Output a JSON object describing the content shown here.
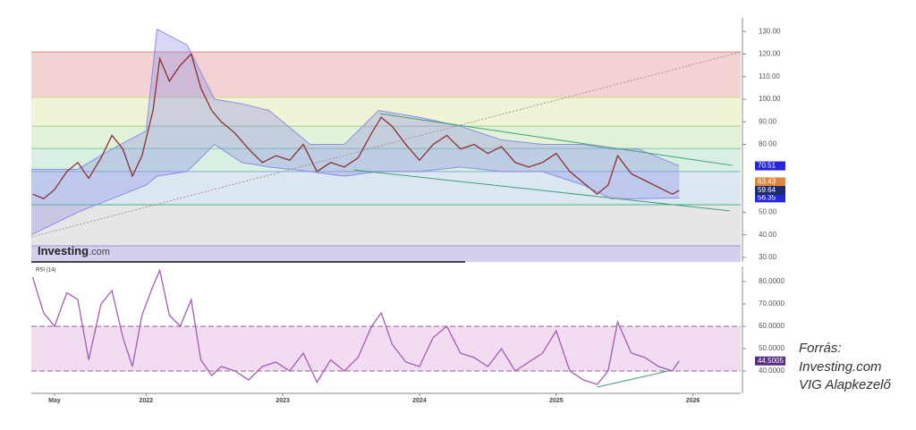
{
  "chart_data": [
    {
      "type": "line",
      "x": [
        2021.17,
        2021.25,
        2021.33,
        2021.42,
        2021.5,
        2021.58,
        2021.67,
        2021.75,
        2021.83,
        2021.9,
        2021.97,
        2022.05,
        2022.1,
        2022.17,
        2022.25,
        2022.33,
        2022.4,
        2022.48,
        2022.55,
        2022.65,
        2022.75,
        2022.85,
        2022.95,
        2023.05,
        2023.15,
        2023.25,
        2023.35,
        2023.45,
        2023.55,
        2023.65,
        2023.72,
        2023.8,
        2023.9,
        2024.0,
        2024.1,
        2024.2,
        2024.3,
        2024.4,
        2024.5,
        2024.6,
        2024.7,
        2024.8,
        2024.9,
        2025.0,
        2025.1,
        2025.2,
        2025.3,
        2025.38,
        2025.45,
        2025.55,
        2025.65,
        2025.75,
        2025.85,
        2025.9
      ],
      "values": [
        58,
        56,
        60,
        68,
        72,
        65,
        74,
        84,
        78,
        66,
        75,
        95,
        118,
        108,
        115,
        120,
        105,
        95,
        90,
        85,
        78,
        72,
        75,
        73,
        80,
        68,
        72,
        70,
        74,
        85,
        92,
        88,
        80,
        73,
        80,
        84,
        78,
        80,
        76,
        79,
        72,
        70,
        72,
        76,
        68,
        63,
        58,
        62,
        75,
        67,
        64,
        61,
        58,
        59.64
      ],
      "color": "#8a3030",
      "xlim": [
        2021.16,
        2026.35
      ],
      "ylim": [
        28,
        136
      ],
      "yticks": [
        {
          "value": 30,
          "label": "30.00"
        },
        {
          "value": 40,
          "label": "40.00"
        },
        {
          "value": 50,
          "label": "50.00"
        },
        {
          "value": 80,
          "label": "80.00"
        },
        {
          "value": 90,
          "label": "90.00"
        },
        {
          "value": 100,
          "label": "100.00"
        },
        {
          "value": 110,
          "label": "110.00"
        },
        {
          "value": 120,
          "label": "120.00"
        },
        {
          "value": 130,
          "label": "130.00"
        }
      ],
      "zones": [
        {
          "from": 100.8,
          "to": 120.9,
          "color": "#f2d2d2",
          "line": "#e08a8a"
        },
        {
          "from": 88.1,
          "to": 100.8,
          "color": "#eef4d4",
          "line": "#c9d98a"
        },
        {
          "from": 78.2,
          "to": 88.1,
          "color": "#e2f2d8",
          "line": "#9fd08a"
        },
        {
          "from": 68.0,
          "to": 78.2,
          "color": "#d8f0e2",
          "line": "#7fc9a0"
        },
        {
          "from": 53.3,
          "to": 68.0,
          "color": "#dbe8f2",
          "line": "#7fb0cf"
        },
        {
          "from": 35.1,
          "to": 53.3,
          "color": "#e6e6e6",
          "line": "#4caf82"
        },
        {
          "from": 28,
          "to": 35.1,
          "color": "#d3d0ef",
          "line": "#9a94d8"
        }
      ],
      "channel": {
        "x": [
          2021.16,
          2021.5,
          2021.75,
          2022.0,
          2022.08,
          2022.3,
          2022.5,
          2022.7,
          2022.9,
          2023.2,
          2023.45,
          2023.7,
          2024.0,
          2024.3,
          2024.6,
          2024.9,
          2025.2,
          2025.4,
          2025.6,
          2025.9
        ],
        "upper": [
          69,
          69,
          78,
          86,
          131,
          124,
          100,
          98,
          95,
          80,
          80,
          95,
          92,
          88,
          82,
          80,
          80,
          78,
          78,
          70.5
        ],
        "lower": [
          40,
          50,
          56,
          62,
          66,
          68,
          80,
          72,
          70,
          68,
          66,
          68,
          68,
          70,
          68,
          68,
          62,
          56,
          56,
          56.35
        ],
        "color": "#8c8ce6"
      },
      "trendlines": [
        {
          "x": [
            2023.71,
            2026.29
          ],
          "y": [
            93.6,
            70.7
          ],
          "color": "#3f9e7a",
          "dashed": false
        },
        {
          "x": [
            2023.52,
            2026.27
          ],
          "y": [
            68.7,
            50.6
          ],
          "color": "#3f9e7a",
          "dashed": false
        },
        {
          "x": [
            2021.16,
            2026.35
          ],
          "y": [
            39,
            120.9
          ],
          "color": "#b08c8c",
          "dashed": true
        }
      ],
      "price_labels": [
        {
          "value": 70.51,
          "color": "#2525d9"
        },
        {
          "value": 63.43,
          "color": "#e0843a"
        },
        {
          "value": 56.35,
          "color": "#2525d9"
        }
      ],
      "last_label_color": "#1c2a6e",
      "watermark": "Investing",
      "watermark_suffix": ".com"
    },
    {
      "type": "line",
      "title": "RSI (14)",
      "x": [
        2021.17,
        2021.25,
        2021.33,
        2021.42,
        2021.5,
        2021.58,
        2021.67,
        2021.75,
        2021.83,
        2021.9,
        2021.97,
        2022.05,
        2022.1,
        2022.17,
        2022.25,
        2022.33,
        2022.4,
        2022.48,
        2022.55,
        2022.65,
        2022.75,
        2022.85,
        2022.95,
        2023.05,
        2023.15,
        2023.25,
        2023.35,
        2023.45,
        2023.55,
        2023.65,
        2023.72,
        2023.8,
        2023.9,
        2024.0,
        2024.1,
        2024.2,
        2024.3,
        2024.4,
        2024.5,
        2024.6,
        2024.7,
        2024.8,
        2024.9,
        2025.0,
        2025.1,
        2025.2,
        2025.3,
        2025.38,
        2025.45,
        2025.55,
        2025.65,
        2025.75,
        2025.85,
        2025.9
      ],
      "values": [
        82,
        66,
        60,
        75,
        72,
        45,
        70,
        76,
        55,
        42,
        65,
        78,
        85,
        65,
        60,
        72,
        45,
        38,
        42,
        40,
        36,
        42,
        44,
        40,
        48,
        35,
        45,
        40,
        46,
        60,
        66,
        52,
        44,
        42,
        55,
        60,
        48,
        46,
        42,
        50,
        40,
        44,
        48,
        58,
        40,
        36,
        34,
        40,
        62,
        48,
        46,
        42,
        40,
        44.5005
      ],
      "color": "#a35bb5",
      "xlim": [
        2021.16,
        2026.35
      ],
      "xticks": [
        {
          "value": 2021.33,
          "label": "May"
        },
        2022,
        2023,
        2024,
        2025,
        2026
      ],
      "ylim": [
        30,
        86.8
      ],
      "yticks": [
        {
          "value": 40,
          "label": "40.0000"
        },
        {
          "value": 50,
          "label": "50.0000"
        },
        {
          "value": 60,
          "label": "60.0000"
        },
        {
          "value": 70,
          "label": "70.0000"
        },
        {
          "value": 80,
          "label": "80.0000"
        }
      ],
      "band": [
        40,
        60
      ],
      "band_color": "#f1dcf1",
      "trendlines": [
        {
          "x": [
            2025.3,
            2025.82
          ],
          "y": [
            32.8,
            40
          ],
          "color": "#3f9e7a",
          "dashed": false
        }
      ],
      "last_label_color": "#5b2c83"
    }
  ],
  "source": {
    "lines": [
      "Forrás:",
      "Investing.com",
      "VIG Alapkezelő"
    ]
  }
}
